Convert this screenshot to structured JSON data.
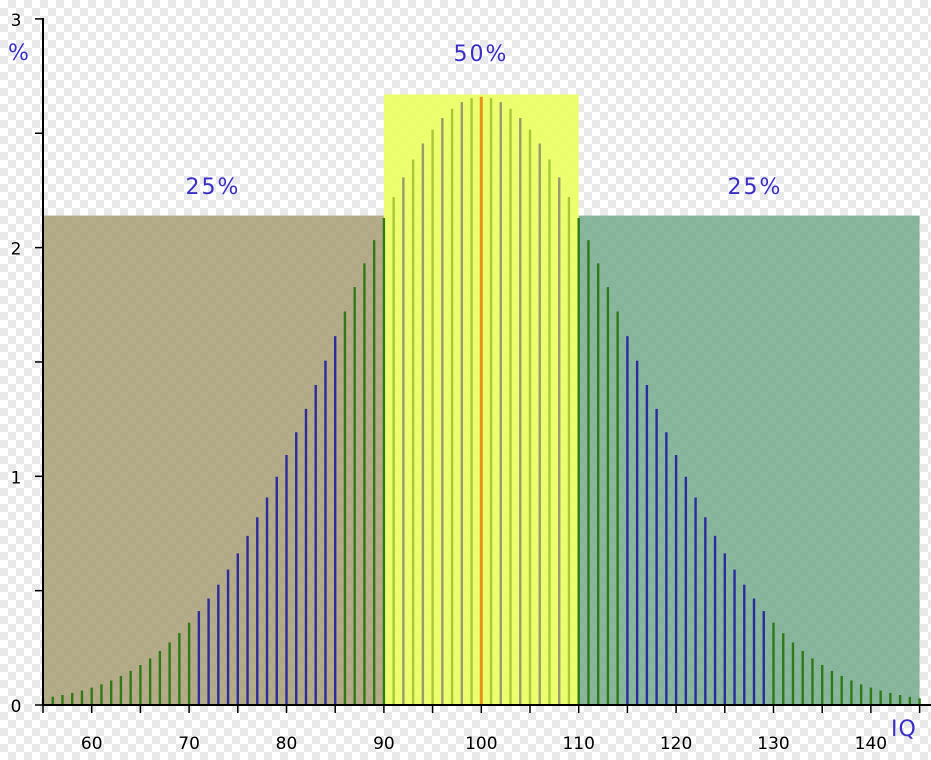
{
  "chart_data": {
    "type": "bar",
    "title": "",
    "xlabel": "IQ",
    "ylabel": "%",
    "xlim": [
      55,
      145
    ],
    "ylim": [
      0,
      3
    ],
    "x_ticks": [
      "60",
      "70",
      "80",
      "90",
      "100",
      "110",
      "120",
      "130",
      "140"
    ],
    "y_ticks": [
      "0",
      "1",
      "2",
      "3"
    ],
    "grid": false,
    "distribution": {
      "mean": 100,
      "sd": 15,
      "x_start": 55,
      "x_end": 145,
      "step": 1,
      "values_unit": "%"
    },
    "bands": [
      {
        "label": "25%",
        "x_range": [
          55,
          90
        ],
        "height": 2.14,
        "color": "#a59a70"
      },
      {
        "label": "50%",
        "x_range": [
          90,
          110
        ],
        "height": 2.67,
        "color": "#eaff5a"
      },
      {
        "label": "25%",
        "x_range": [
          110,
          145
        ],
        "height": 2.14,
        "color": "#6fa88a"
      }
    ],
    "colors": {
      "bar_blue": "#2b2b9e",
      "bar_green": "#2f7a16",
      "bar_lime": "#a8c83a",
      "bar_gray": "#9a9a70",
      "bar_center": "#e8921a",
      "axis": "#000000",
      "text_accent": "#3a2fc2"
    }
  }
}
